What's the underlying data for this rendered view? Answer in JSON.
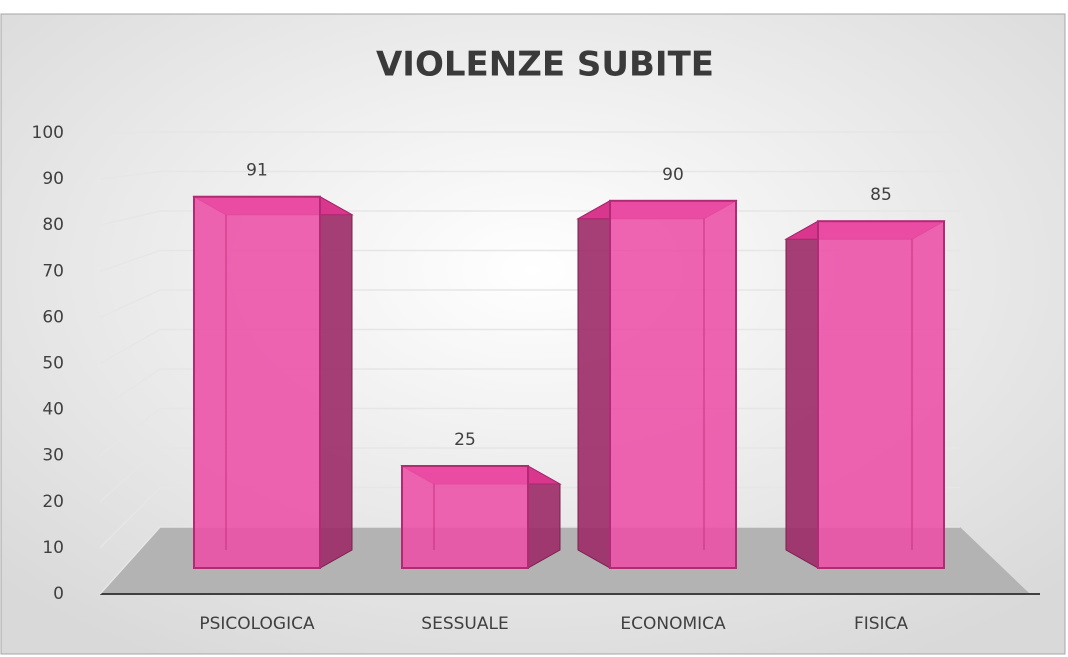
{
  "chart_data": {
    "type": "bar",
    "title": "VIOLENZE SUBITE",
    "categories": [
      "PSICOLOGICA",
      "SESSUALE",
      "ECONOMICA",
      "FISICA"
    ],
    "values": [
      91,
      25,
      90,
      85
    ],
    "color": "#ec4fa6",
    "ylim": [
      0,
      100
    ],
    "yticks": [
      0,
      10,
      20,
      30,
      40,
      50,
      60,
      70,
      80,
      90,
      100
    ],
    "grid": true
  }
}
